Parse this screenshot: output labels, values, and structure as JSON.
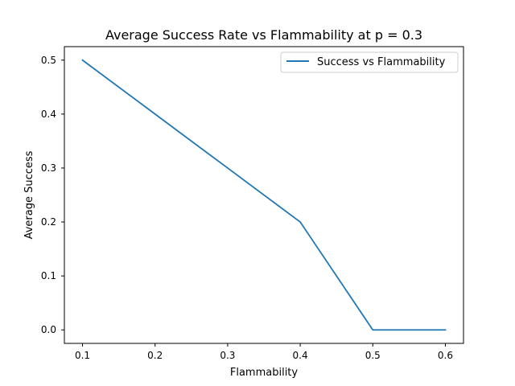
{
  "chart_data": {
    "type": "line",
    "title": "Average Success Rate vs Flammability at p = 0.3",
    "xlabel": "Flammability",
    "ylabel": "Average Success",
    "x": [
      0.1,
      0.2,
      0.3,
      0.4,
      0.5,
      0.6
    ],
    "series": [
      {
        "name": "Success vs Flammability",
        "values": [
          0.5,
          0.4,
          0.3,
          0.2,
          0.0,
          0.0
        ],
        "color": "#1f77b4"
      }
    ],
    "xlim": [
      0.075,
      0.625
    ],
    "ylim": [
      -0.025,
      0.525
    ],
    "x_ticks": [
      "0.1",
      "0.2",
      "0.3",
      "0.4",
      "0.5",
      "0.6"
    ],
    "y_ticks": [
      "0.0",
      "0.1",
      "0.2",
      "0.3",
      "0.4",
      "0.5"
    ],
    "grid": false,
    "legend": "top-right"
  }
}
